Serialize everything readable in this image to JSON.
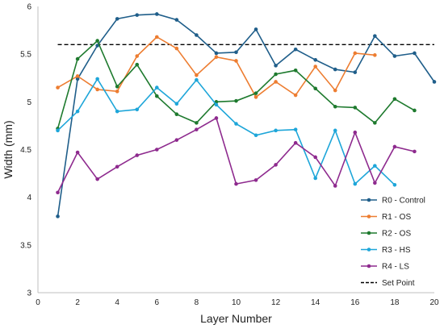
{
  "chart_data": {
    "type": "line",
    "xlabel": "Layer Number",
    "ylabel": "Width (mm)",
    "xlim": [
      0,
      20
    ],
    "ylim": [
      3,
      6
    ],
    "xticks": [
      0,
      2,
      4,
      6,
      8,
      10,
      12,
      14,
      16,
      18,
      20
    ],
    "yticks": [
      3,
      3.5,
      4,
      4.5,
      5,
      5.5,
      6
    ],
    "yticks_labels": [
      "3",
      "3.5",
      "4",
      "4.5",
      "5",
      "5.5",
      "6"
    ],
    "grid": false,
    "legend_position": "bottom-right",
    "series": [
      {
        "name": "R0 - Control",
        "color": "#1f5e8a",
        "x": [
          1,
          2,
          3,
          4,
          5,
          6,
          7,
          8,
          9,
          10,
          11,
          12,
          13,
          14,
          15,
          16,
          17,
          18,
          19,
          20
        ],
        "y": [
          3.8,
          5.24,
          5.59,
          5.87,
          5.91,
          5.92,
          5.86,
          5.7,
          5.51,
          5.52,
          5.76,
          5.38,
          5.55,
          5.44,
          5.34,
          5.31,
          5.69,
          5.48,
          5.51,
          5.21
        ]
      },
      {
        "name": "R1 - OS",
        "color": "#ed7d31",
        "x": [
          1,
          2,
          3,
          4,
          5,
          6,
          7,
          8,
          9,
          10,
          11,
          12,
          13,
          14,
          15,
          16,
          17
        ],
        "y": [
          5.15,
          5.27,
          5.13,
          5.11,
          5.48,
          5.68,
          5.56,
          5.28,
          5.47,
          5.43,
          5.05,
          5.21,
          5.07,
          5.37,
          5.12,
          5.51,
          5.49
        ]
      },
      {
        "name": "R2 - OS",
        "color": "#1e7a2e",
        "x": [
          1,
          2,
          3,
          4,
          5,
          6,
          7,
          8,
          9,
          10,
          11,
          12,
          13,
          14,
          15,
          16,
          17,
          18,
          19
        ],
        "y": [
          4.72,
          5.45,
          5.64,
          5.16,
          5.39,
          5.06,
          4.87,
          4.78,
          5.0,
          5.01,
          5.09,
          5.29,
          5.33,
          5.14,
          4.95,
          4.94,
          4.78,
          5.03,
          4.91
        ]
      },
      {
        "name": "R3 - HS",
        "color": "#1ea6d9",
        "x": [
          1,
          2,
          3,
          4,
          5,
          6,
          7,
          8,
          9,
          10,
          11,
          12,
          13,
          14,
          15,
          16,
          17,
          18
        ],
        "y": [
          4.7,
          4.9,
          5.24,
          4.9,
          4.92,
          5.15,
          4.98,
          5.23,
          4.97,
          4.77,
          4.65,
          4.7,
          4.71,
          4.2,
          4.7,
          4.14,
          4.33,
          4.13
        ]
      },
      {
        "name": "R4 - LS",
        "color": "#8e2a8e",
        "x": [
          1,
          2,
          3,
          4,
          5,
          6,
          7,
          8,
          9,
          10,
          11,
          12,
          13,
          14,
          15,
          16,
          17,
          18,
          19
        ],
        "y": [
          4.05,
          4.47,
          4.19,
          4.32,
          4.44,
          4.5,
          4.6,
          4.71,
          4.83,
          4.14,
          4.18,
          4.34,
          4.57,
          4.42,
          4.12,
          4.68,
          4.15,
          4.53,
          4.48
        ]
      }
    ],
    "reference_line": {
      "name": "Set Point",
      "y": 5.6,
      "color": "#000000",
      "style": "dashed"
    }
  }
}
